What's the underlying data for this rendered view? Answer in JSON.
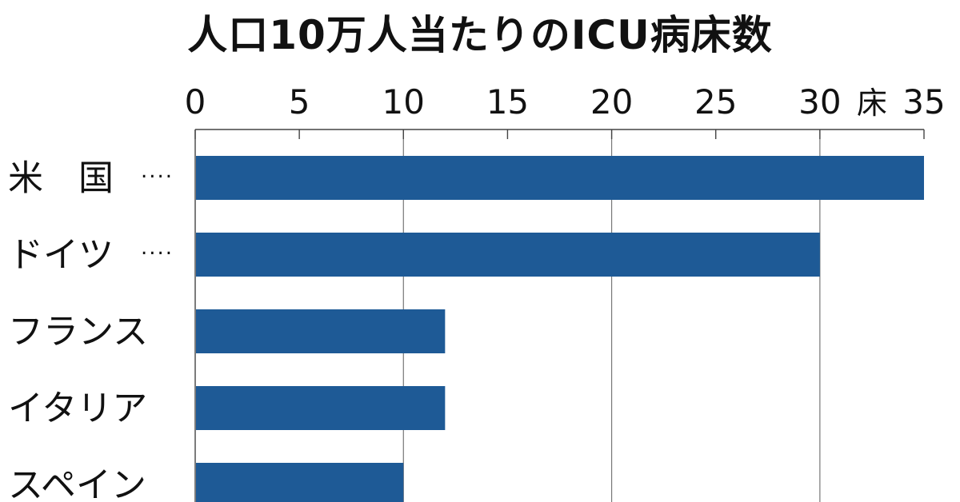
{
  "chart_data": {
    "type": "bar",
    "orientation": "horizontal",
    "title": "人口10万人当たりのICU病床数",
    "unit": "床",
    "xlim": [
      0,
      35
    ],
    "ticks": [
      0,
      5,
      10,
      15,
      20,
      25,
      30,
      35
    ],
    "tick_labels": [
      "0",
      "5",
      "10",
      "15",
      "20",
      "25",
      "30",
      "35"
    ],
    "categories": [
      "米　国",
      "ドイツ",
      "フランス",
      "イタリア",
      "スペイン"
    ],
    "category_suffixes": [
      "····",
      "····",
      "",
      "",
      ""
    ],
    "values": [
      35,
      30,
      12,
      12,
      10
    ],
    "grid": true,
    "bar_color": "#1e5a96"
  }
}
